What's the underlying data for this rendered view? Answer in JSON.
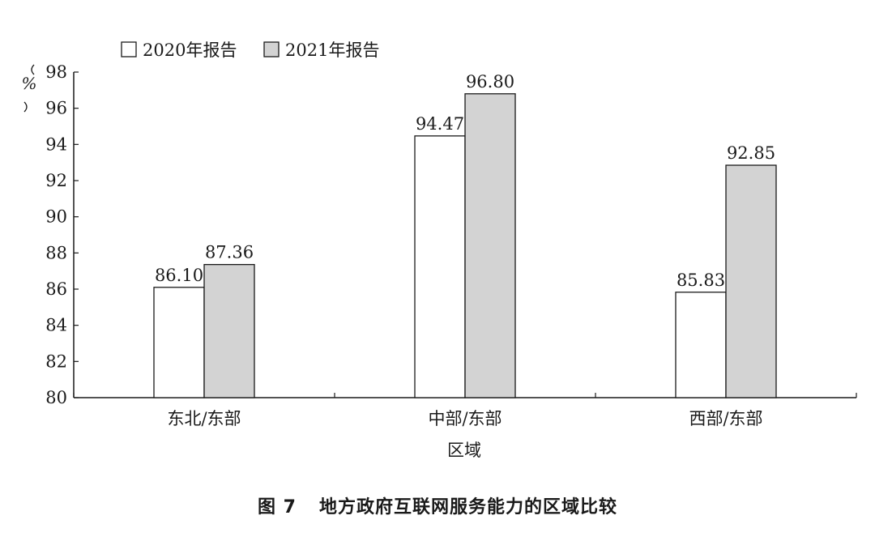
{
  "chart_data": {
    "type": "bar",
    "categories": [
      "东北/东部",
      "中部/东部",
      "西部/东部"
    ],
    "series": [
      {
        "name": "2020年报告",
        "values": [
          86.1,
          94.47,
          85.83
        ],
        "color": "#ffffff"
      },
      {
        "name": "2021年报告",
        "values": [
          87.36,
          96.8,
          92.85
        ],
        "color": "#d3d3d3"
      }
    ],
    "value_labels": [
      [
        "86.10",
        "94.47",
        "85.83"
      ],
      [
        "87.36",
        "96.80",
        "92.85"
      ]
    ],
    "xlabel": "区域",
    "ylabel": "%",
    "ylim": [
      80,
      98
    ],
    "yticks": [
      80,
      82,
      84,
      86,
      88,
      90,
      92,
      94,
      96,
      98
    ],
    "legend_position": "top-left",
    "grid": false
  },
  "figure": {
    "number": "图 7",
    "title": "地方政府互联网服务能力的区域比较"
  }
}
